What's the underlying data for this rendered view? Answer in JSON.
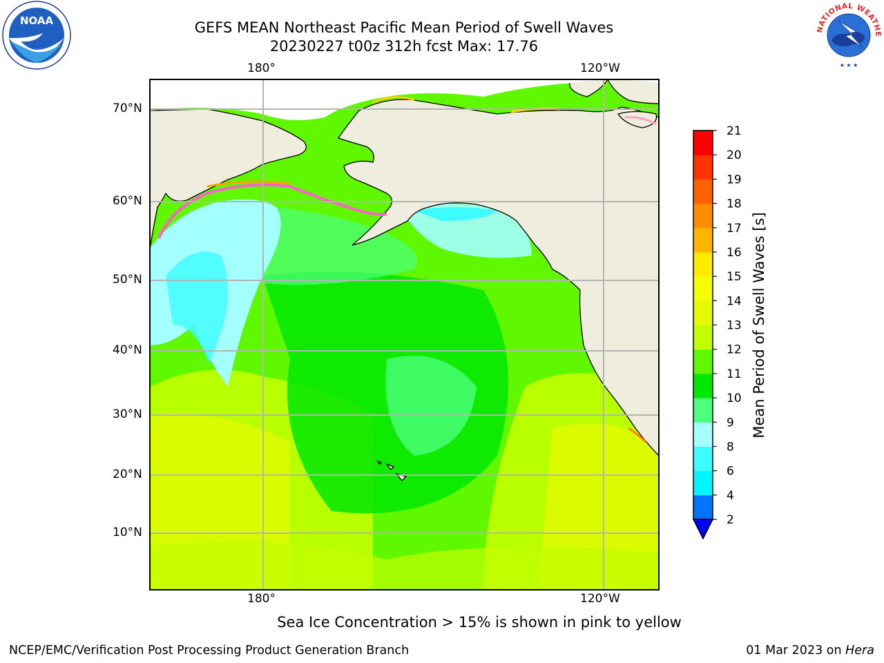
{
  "title": {
    "line1": "GEFS MEAN Northeast Pacific Mean Period of Swell Waves",
    "line2": "20230227 t00z 312h fcst   Max: 17.76"
  },
  "logos": {
    "left": "noaa-logo",
    "right": "national-weather-service-logo",
    "left_text": "NOAA",
    "right_text": "NATIONAL WEATHER SERVICE"
  },
  "map": {
    "top_lon_labels": [
      "180°",
      "120°W"
    ],
    "bottom_lon_labels": [
      "180°",
      "120°W"
    ],
    "lat_labels": [
      "70°N",
      "60°N",
      "50°N",
      "40°N",
      "30°N",
      "20°N",
      "10°N"
    ],
    "land_color": "#efedde",
    "grid_color": "#b4b4b4"
  },
  "colorbar": {
    "label": "Mean Period of Swell Waves [s]",
    "ticks": [
      "2",
      "4",
      "6",
      "8",
      "9",
      "10",
      "11",
      "12",
      "13",
      "14",
      "15",
      "16",
      "17",
      "18",
      "19",
      "20",
      "21"
    ],
    "colors": [
      "#0073ff",
      "#00f5ff",
      "#3cfcff",
      "#a4ffff",
      "#4cff7d",
      "#00e800",
      "#5ff800",
      "#c2ff00",
      "#e3fa00",
      "#f5ff00",
      "#ffeb00",
      "#ffb400",
      "#ff8b00",
      "#ff6200",
      "#ff3300",
      "#ff0000"
    ],
    "under_color": "#0000ff"
  },
  "note": "Sea Ice Concentration > 15% is shown in pink to yellow",
  "footer": {
    "left": "NCEP/EMC/Verification Post Processing Product Generation Branch",
    "date": "01 Mar 2023 on ",
    "machine": "Hera"
  }
}
